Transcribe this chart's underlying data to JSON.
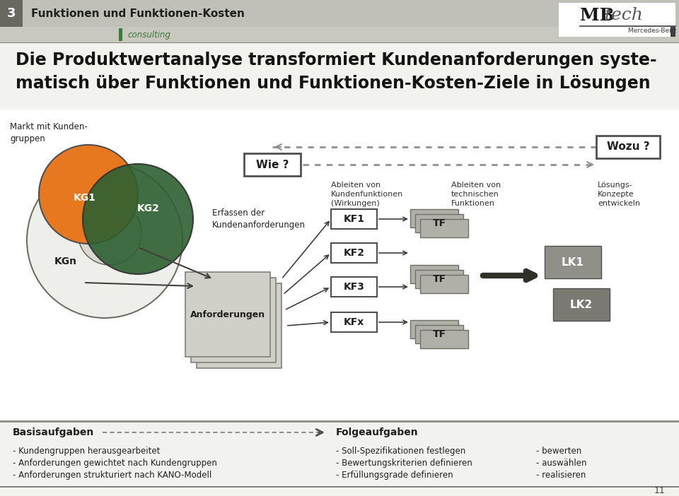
{
  "title_header_num": "3",
  "title_header_text": "Funktionen und Funktionen-Kosten",
  "consulting_text": "consulting",
  "main_title_line1": "Die Produktwertanalyse transformiert Kundenanforderungen syste-",
  "main_title_line2": "matisch über Funktionen und Funktionen-Kosten-Ziele in Lösungen",
  "markt_text": "Markt mit Kunden-\ngruppen",
  "wie_text": "Wie ?",
  "wozu_text": "Wozu ?",
  "kg1_text": "KG1",
  "kg2_text": "KG2",
  "kgn_text": "KGn",
  "erfassen_text": "Erfassen der\nKundenanforderungen",
  "anforderungen_text": "Anforderungen",
  "ableiten_kunden_text": "Ableiten von\nKundenfunktionen\n(Wirkungen)",
  "ableiten_tech_text": "Ableiten von\ntechnischen\nFunktionen",
  "loesungs_text": "Lösungs-\nKonzepte\nentwickeln",
  "kf_labels": [
    "KF1",
    "KF2",
    "KF3",
    "KFx"
  ],
  "tf_text": "TF",
  "lk1_text": "LK1",
  "lk2_text": "LK2",
  "basisaufgaben_text": "Basisaufgaben",
  "folgeaufgaben_text": "Folgeaufgaben",
  "basis_items": [
    "- Kundengruppen herausgearbeitet",
    "- Anforderungen gewichtet nach Kundengruppen",
    "- Anforderungen strukturiert nach KANO-Modell"
  ],
  "folge_items_col1": [
    "- Soll-Spezifikationen festlegen",
    "- Bewertungskriterien definieren",
    "- Erfüllungsgrade definieren"
  ],
  "folge_items_col2": [
    "- bewerten",
    "- auswählen",
    "- realisieren"
  ],
  "page_number": "11",
  "bg_color": "#f2f2ee",
  "header_bar_color": "#c0c0b8",
  "num_box_color": "#686860",
  "green_accent": "#3d7a3d",
  "orange_color": "#e87820",
  "dark_green": "#2d6030",
  "dark_gray": "#404040",
  "light_gray": "#c8c8be",
  "medium_gray": "#a8a8a0",
  "lk_gray": "#909088",
  "tf_gray": "#b0b0a8",
  "arrow_dark": "#505050"
}
